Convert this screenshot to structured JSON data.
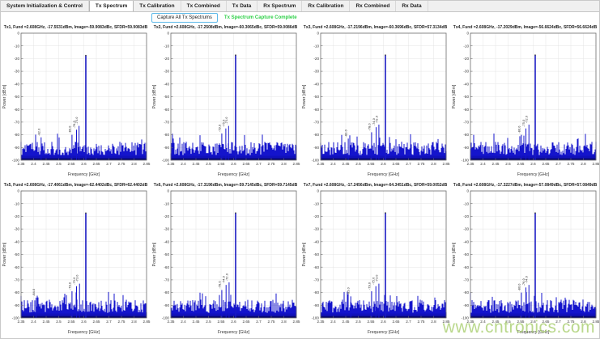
{
  "tabs": {
    "items": [
      "System Initialization & Control",
      "Tx Spectrum",
      "Tx Calibration",
      "Tx Combined",
      "Tx Data",
      "Rx Spectrum",
      "Rx Calibration",
      "Rx Combined",
      "Rx Data"
    ],
    "selected": "Tx Spectrum"
  },
  "controls": {
    "capture_button_label": "Capture All Tx Spectrums",
    "status_text": "Tx Spectrum Capture Complete",
    "status_color": "#2ed048"
  },
  "watermark": {
    "text": "www.cntronics.com",
    "color": "#a9cf70"
  },
  "chart_data": {
    "type": "line",
    "shared": {
      "xlabel": "Frequency [GHz]",
      "ylabel": "Power [dBm]",
      "xlim": [
        2.35,
        2.85
      ],
      "ylim": [
        -100,
        0
      ],
      "xticks": [
        2.35,
        2.4,
        2.45,
        2.5,
        2.55,
        2.6,
        2.65,
        2.7,
        2.75,
        2.8,
        2.85
      ],
      "xtick_labels": [
        "2.35",
        "2.4",
        "2.45",
        "2.5",
        "2.55",
        "2.6",
        "2.65",
        "2.7",
        "2.75",
        "2.8",
        "2.85"
      ],
      "yticks": [
        0,
        -10,
        -20,
        -30,
        -40,
        -50,
        -60,
        -70,
        -80,
        -90,
        -100
      ],
      "grid": true,
      "line_color": "#1414cc",
      "noise_floor_dbm": [
        -100,
        -85
      ]
    },
    "plots": [
      {
        "name": "Tx1",
        "title": "Tx1, Fund =2.608GHz, -17.5531dBm, Image=-59.9083dBc, SFDR=59.9083dB",
        "fund_ghz": 2.608,
        "fund_dbm": -17.5531,
        "image_dbc": -59.9083,
        "sfdr_db": 59.9083,
        "spurs": [
          [
            2.43,
            -82
          ],
          [
            2.553,
            -80
          ],
          [
            2.571,
            -76
          ],
          [
            2.581,
            -73
          ]
        ]
      },
      {
        "name": "Tx2",
        "title": "Tx2, Fund =2.608GHz, -17.2508dBm, Image=-60.3065dBc, SFDR=59.0086dB",
        "fund_ghz": 2.608,
        "fund_dbm": -17.2508,
        "image_dbc": -60.3065,
        "sfdr_db": 59.0086,
        "spurs": [
          [
            2.553,
            -79
          ],
          [
            2.569,
            -75
          ],
          [
            2.58,
            -73
          ]
        ]
      },
      {
        "name": "Tx3",
        "title": "Tx3, Fund =2.608GHz, -17.2196dBm, Image=-60.3696dBc, SFDR=57.3134dB",
        "fund_ghz": 2.608,
        "fund_dbm": -17.2196,
        "image_dbc": -60.3696,
        "sfdr_db": 57.3134,
        "spurs": [
          [
            2.46,
            -83
          ],
          [
            2.553,
            -78
          ],
          [
            2.571,
            -74
          ],
          [
            2.582,
            -72
          ]
        ]
      },
      {
        "name": "Tx4",
        "title": "Tx4, Fund =2.608GHz, -17.2029dBm, Image=-56.6624dBc, SFDR=56.6624dB",
        "fund_ghz": 2.608,
        "fund_dbm": -17.2029,
        "image_dbc": -56.6624,
        "sfdr_db": 56.6624,
        "spurs": [
          [
            2.553,
            -80
          ],
          [
            2.571,
            -75
          ],
          [
            2.583,
            -72
          ]
        ]
      },
      {
        "name": "Tx5",
        "title": "Tx5, Fund =2.608GHz, -17.4061dBm, Image=-62.4402dBc, SFDR=62.4402dB",
        "fund_ghz": 2.608,
        "fund_dbm": -17.4061,
        "image_dbc": -62.4402,
        "sfdr_db": 62.4402,
        "spurs": [
          [
            2.41,
            -84
          ],
          [
            2.553,
            -79
          ],
          [
            2.571,
            -75
          ],
          [
            2.583,
            -73
          ]
        ]
      },
      {
        "name": "Tx6",
        "title": "Tx6, Fund =2.608GHz, -17.3196dBm, Image=-59.7145dBc, SFDR=59.7145dB",
        "fund_ghz": 2.608,
        "fund_dbm": -17.3196,
        "image_dbc": -59.7145,
        "sfdr_db": 59.7145,
        "spurs": [
          [
            2.553,
            -78
          ],
          [
            2.57,
            -74
          ],
          [
            2.582,
            -72
          ]
        ]
      },
      {
        "name": "Tx7",
        "title": "Tx7, Fund =2.608GHz, -17.2456dBm, Image=-64.3451dBc, SFDR=59.0052dB",
        "fund_ghz": 2.608,
        "fund_dbm": -17.2456,
        "image_dbc": -64.3451,
        "sfdr_db": 59.0052,
        "spurs": [
          [
            2.47,
            -83
          ],
          [
            2.553,
            -79
          ],
          [
            2.57,
            -75
          ],
          [
            2.582,
            -73
          ]
        ]
      },
      {
        "name": "Tx8",
        "title": "Tx8, Fund =2.608GHz, -17.3227dBm, Image=-57.0849dBc, SFDR=57.0849dB",
        "fund_ghz": 2.608,
        "fund_dbm": -17.3227,
        "image_dbc": -57.0849,
        "sfdr_db": 57.0849,
        "spurs": [
          [
            2.553,
            -80
          ],
          [
            2.571,
            -76
          ],
          [
            2.583,
            -74
          ]
        ]
      }
    ]
  }
}
